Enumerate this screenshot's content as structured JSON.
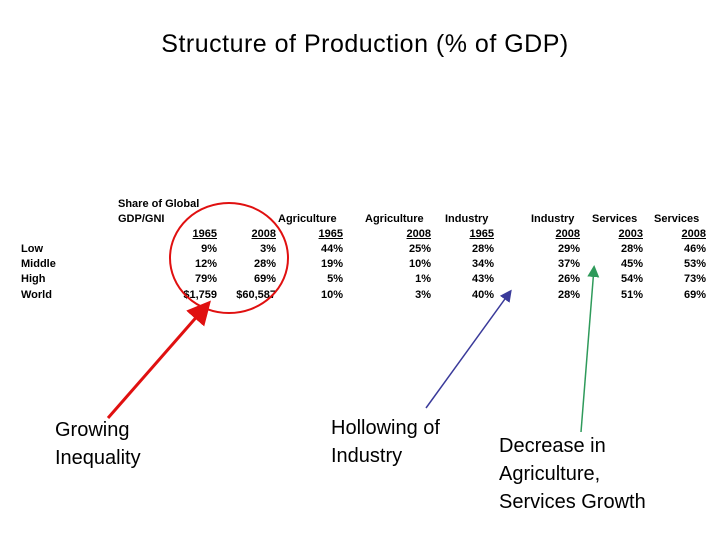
{
  "title": "Structure of Production (% of GDP)",
  "table": {
    "share_header": [
      "Share of Global",
      "GDP/GNI"
    ],
    "group_headers": [
      "Agriculture",
      "Agriculture",
      "Industry",
      "Industry",
      "Services",
      "Services"
    ],
    "years": [
      "1965",
      "2008",
      "1965",
      "2008",
      "1965",
      "2008",
      "2003",
      "2008"
    ],
    "rows": [
      {
        "label": "Low",
        "values": [
          "9%",
          "3%",
          "44%",
          "25%",
          "28%",
          "29%",
          "28%",
          "46%"
        ]
      },
      {
        "label": "Middle",
        "values": [
          "12%",
          "28%",
          "19%",
          "10%",
          "34%",
          "37%",
          "45%",
          "53%"
        ]
      },
      {
        "label": "High",
        "values": [
          "79%",
          "69%",
          "5%",
          "1%",
          "43%",
          "26%",
          "54%",
          "73%"
        ]
      },
      {
        "label": "World",
        "values": [
          "$1,759",
          "$60,587",
          "10%",
          "3%",
          "40%",
          "28%",
          "51%",
          "69%"
        ]
      }
    ]
  },
  "annotations": {
    "inequality": [
      "Growing",
      "Inequality"
    ],
    "industry": [
      "Hollowing of",
      "Industry"
    ],
    "agriculture": [
      "Decrease in",
      "Agriculture,",
      "Services Growth"
    ]
  },
  "colors": {
    "circle": "#e01010",
    "arrow_red": "#e01010",
    "arrow_blue": "#3a3a9a",
    "arrow_green": "#2e9a5a"
  }
}
